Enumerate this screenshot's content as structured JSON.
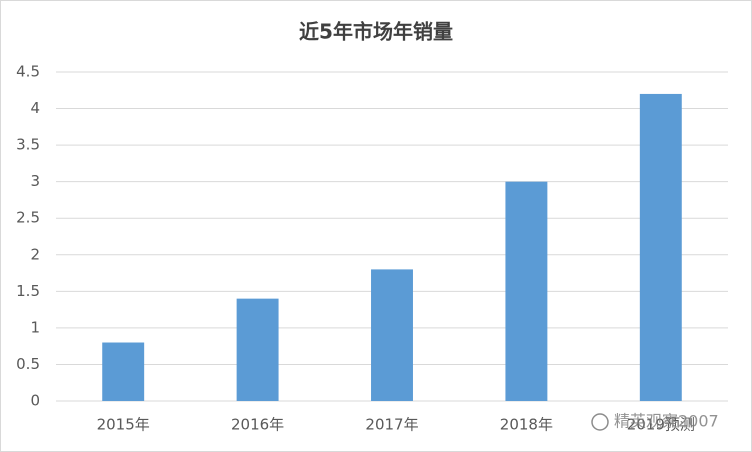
{
  "chart_data": {
    "type": "bar",
    "title": "近5年市场年销量",
    "categories": [
      "2015年",
      "2016年",
      "2017年",
      "2018年",
      "2019预测"
    ],
    "values": [
      0.8,
      1.4,
      1.8,
      3,
      4.2
    ],
    "color": "#5b9bd5",
    "ylim": [
      0,
      4.5
    ],
    "yticks": [
      0,
      0.5,
      1,
      1.5,
      2,
      2.5,
      3,
      3.5,
      4,
      4.5
    ],
    "grid": true,
    "watermark": "精英观察2007"
  }
}
